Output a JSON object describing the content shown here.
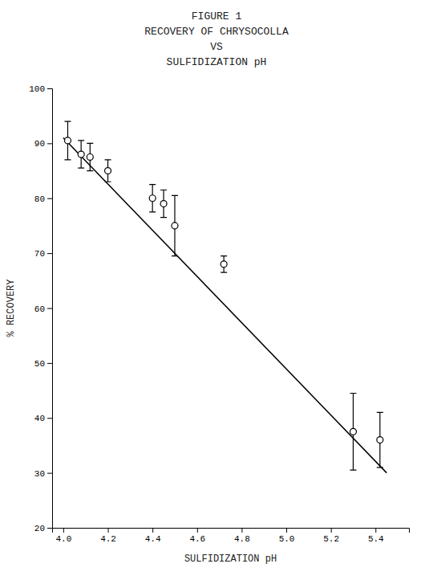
{
  "chart_data": {
    "type": "scatter",
    "title": [
      "FIGURE 1",
      "RECOVERY OF CHRYSOCOLLA",
      "VS",
      "SULFIDIZATION  pH"
    ],
    "x_label": "SULFIDIZATION  pH",
    "y_label": "% RECOVERY",
    "xlim": [
      3.95,
      5.55
    ],
    "ylim": [
      20,
      100
    ],
    "xticks": [
      {
        "value": 4.0,
        "label": "4.0"
      },
      4.2,
      4.4,
      4.6,
      4.8,
      {
        "value": 5.0,
        "label": "5.0"
      },
      5.2,
      5.4
    ],
    "yticks": [
      20,
      30,
      40,
      50,
      60,
      70,
      80,
      90,
      100
    ],
    "grid": false,
    "series": [
      {
        "type": "scatter",
        "marker": "circle",
        "color": "black",
        "x": [
          4.02,
          4.08,
          4.12,
          4.2,
          4.4,
          4.45,
          4.5,
          4.72,
          5.3,
          5.42
        ],
        "values": [
          90.5,
          88.0,
          87.5,
          85.0,
          80.0,
          79.0,
          75.0,
          68.0,
          37.5,
          36.0
        ],
        "error": [
          3.5,
          2.5,
          2.5,
          2.0,
          2.5,
          2.5,
          5.5,
          1.5,
          7.0,
          5.0
        ]
      },
      {
        "type": "line",
        "color": "black",
        "x": [
          4.0,
          5.45
        ],
        "values": [
          91.0,
          30.0
        ]
      }
    ]
  }
}
